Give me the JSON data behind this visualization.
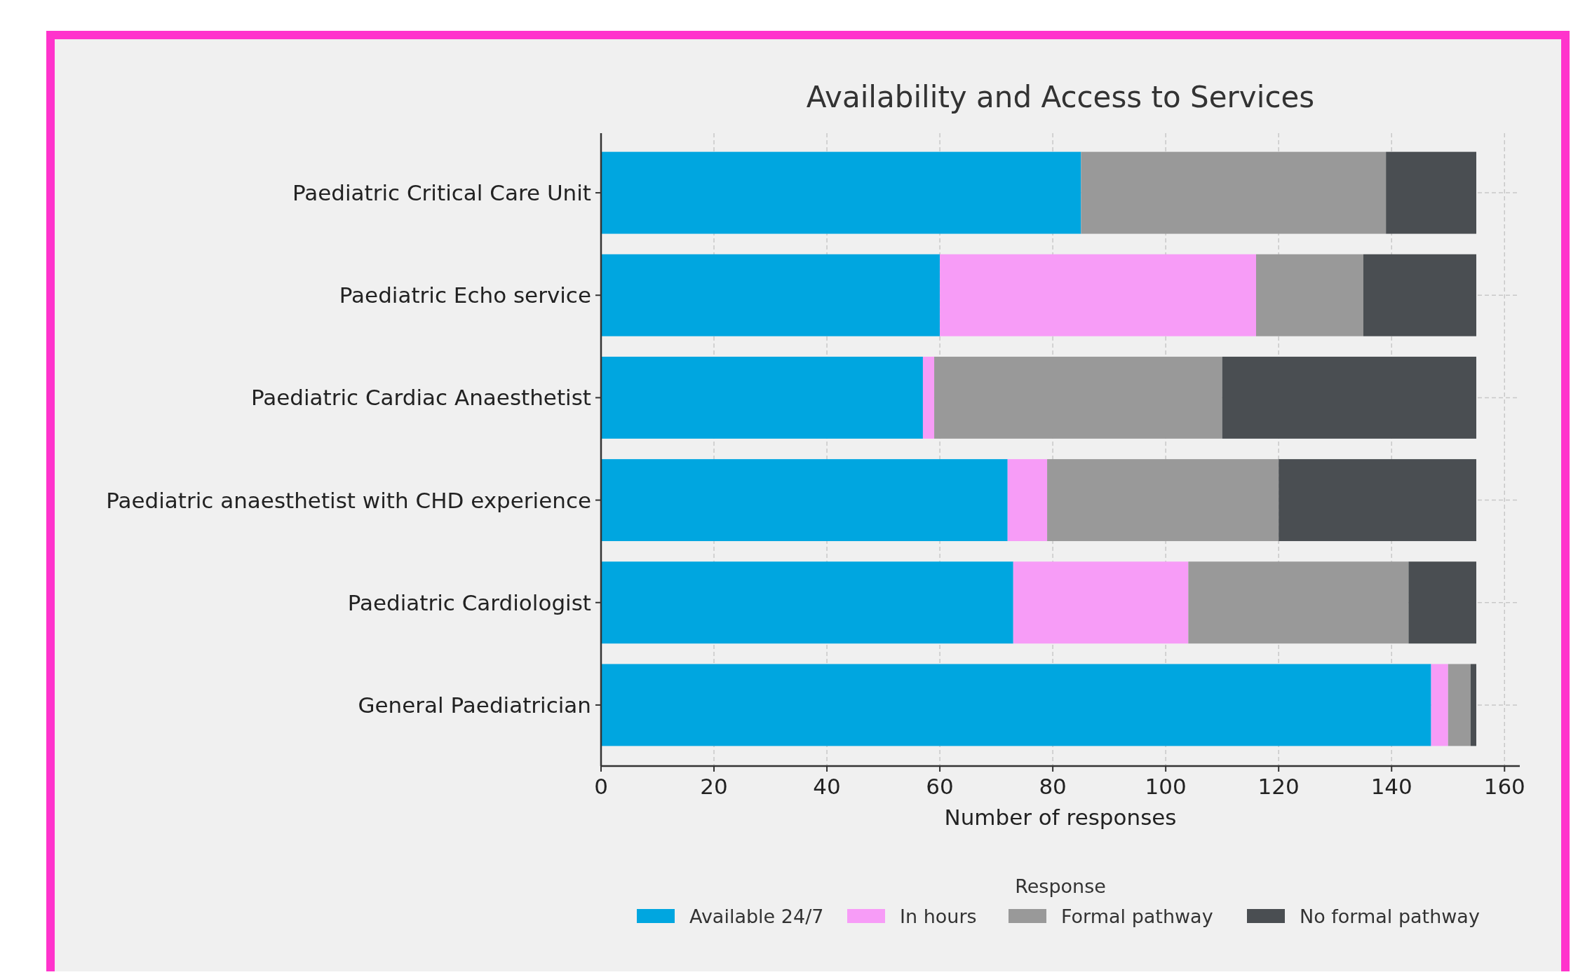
{
  "chart_data": {
    "type": "bar",
    "orientation": "horizontal",
    "stacked": true,
    "title": "Availability and Access to Services",
    "xlabel": "Number of responses",
    "legend_title": "Response",
    "legend": "bottom",
    "grid": true,
    "categories": [
      "Paediatric Critical Care Unit",
      "Paediatric Echo service",
      "Paediatric Cardiac Anaesthetist",
      "Paediatric anaesthetist with CHD experience",
      "Paediatric Cardiologist",
      "General Paediatrician"
    ],
    "series": [
      {
        "name": "Available 24/7",
        "color": "#00a6e0",
        "values": [
          85,
          60,
          57,
          72,
          73,
          147
        ]
      },
      {
        "name": "In hours",
        "color": "#f79cf7",
        "values": [
          0,
          56,
          2,
          7,
          31,
          3
        ]
      },
      {
        "name": "Formal pathway",
        "color": "#999999",
        "values": [
          54,
          19,
          51,
          41,
          39,
          4
        ]
      },
      {
        "name": "No formal pathway",
        "color": "#4a4e52",
        "values": [
          16,
          20,
          45,
          35,
          12,
          1
        ]
      }
    ],
    "xlim": [
      0,
      162.7
    ],
    "xticks": [
      0,
      20,
      40,
      60,
      80,
      100,
      120,
      140,
      160
    ]
  }
}
